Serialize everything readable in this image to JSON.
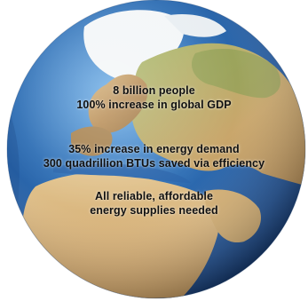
{
  "globe": {
    "ocean_color": "#2f6fb5",
    "land_colors": [
      "#cda86a",
      "#b98f52",
      "#8fa55b",
      "#a67c4a"
    ],
    "ice_color": "#f3f6f8"
  },
  "stats": {
    "block1": {
      "line1": "8 billion people",
      "line2": "100% increase in global GDP"
    },
    "block2": {
      "line1": "35% increase in energy demand",
      "line2": "300 quadrillion BTUs saved via efficiency"
    },
    "block3": {
      "line1": "All reliable, affordable",
      "line2": "energy supplies needed"
    }
  }
}
